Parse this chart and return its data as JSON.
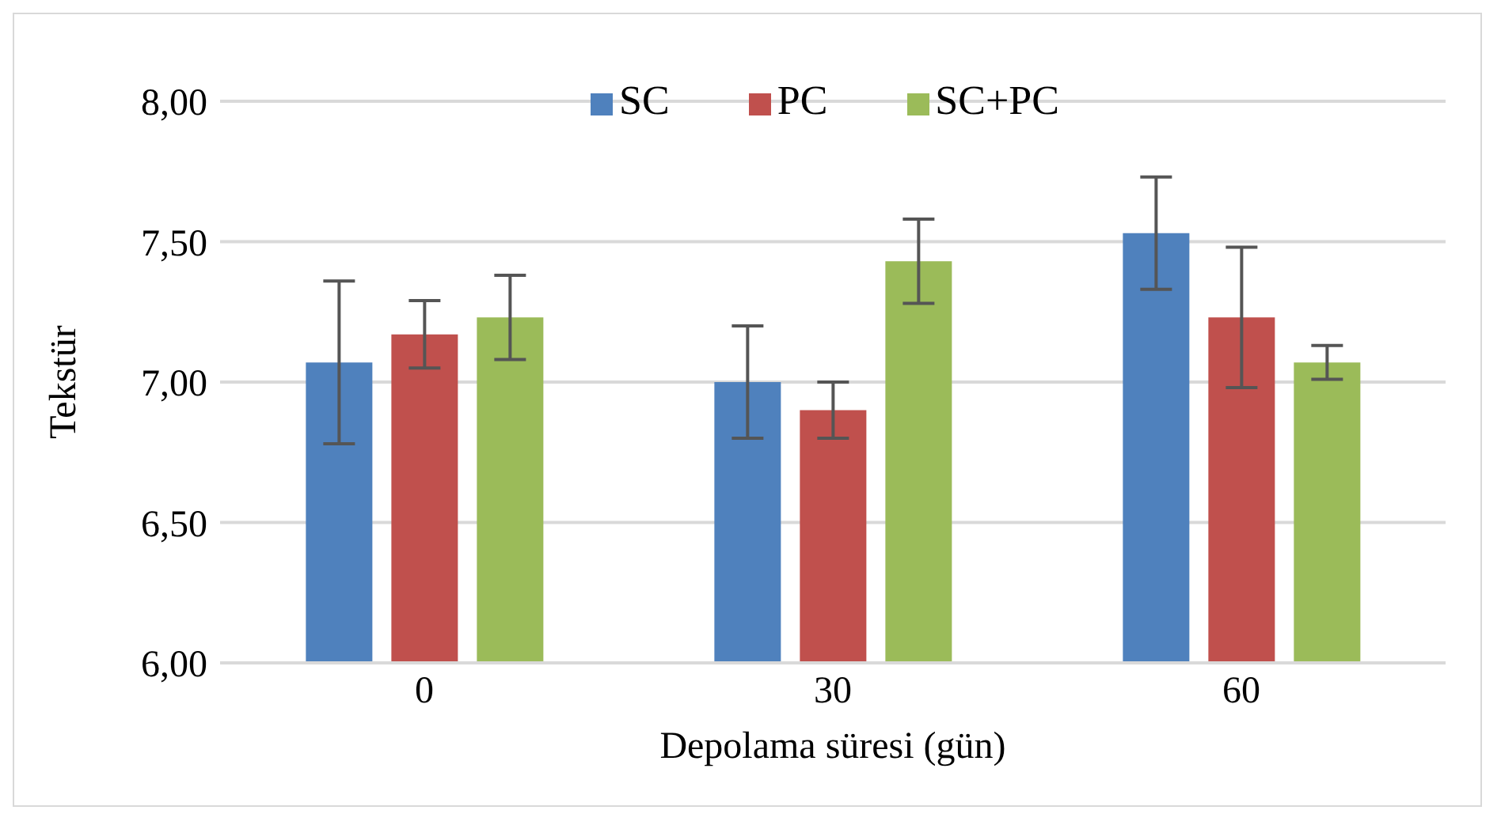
{
  "chart_data": {
    "type": "bar",
    "xlabel": "Depolama süresi (gün)",
    "ylabel": "Tekstür",
    "categories": [
      "0",
      "30",
      "60"
    ],
    "series": [
      {
        "name": "SC",
        "color": "#4f81bd",
        "values": [
          7.07,
          7.0,
          7.53
        ],
        "errors": [
          0.29,
          0.2,
          0.2
        ]
      },
      {
        "name": "PC",
        "color": "#c0504d",
        "values": [
          7.17,
          6.9,
          7.23
        ],
        "errors": [
          0.12,
          0.1,
          0.25
        ]
      },
      {
        "name": "SC+PC",
        "color": "#9bbb59",
        "values": [
          7.23,
          7.43,
          7.07
        ],
        "errors": [
          0.15,
          0.15,
          0.06
        ]
      }
    ],
    "ylim": [
      6,
      8
    ],
    "yticks": [
      {
        "value": 6,
        "label": "6,00"
      },
      {
        "value": 6.5,
        "label": "6,50"
      },
      {
        "value": 7,
        "label": "7,00"
      },
      {
        "value": 7.5,
        "label": "7,50"
      },
      {
        "value": 8,
        "label": "8,00"
      }
    ],
    "grid": "y",
    "legend": "top"
  }
}
